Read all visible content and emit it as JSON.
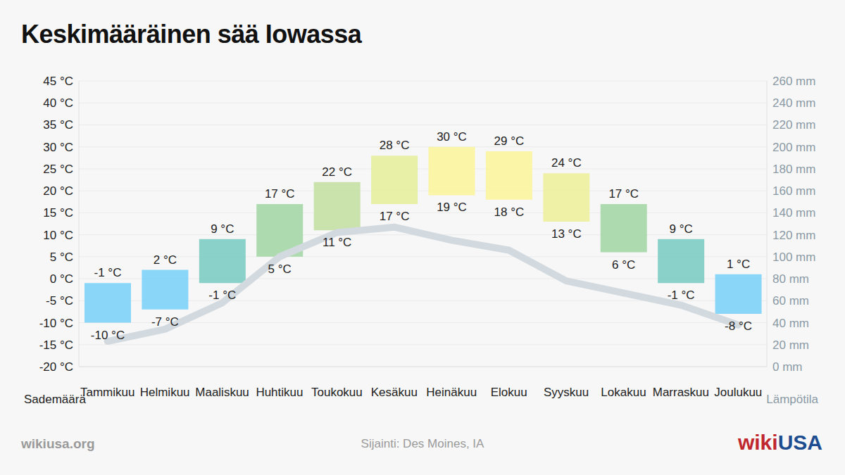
{
  "chart_data": {
    "type": "bar",
    "title": "Keskimääräinen sää Iowassa",
    "categories": [
      "Tammikuu",
      "Helmikuu",
      "Maaliskuu",
      "Huhtikuu",
      "Toukokuu",
      "Kesäkuu",
      "Heinäkuu",
      "Elokuu",
      "Syyskuu",
      "Lokakuu",
      "Marraskuu",
      "Joulukuu"
    ],
    "series": [
      {
        "name": "Lämpötila",
        "type": "bar",
        "low": [
          -10,
          -7,
          -1,
          5,
          11,
          17,
          19,
          18,
          13,
          6,
          -1,
          -8
        ],
        "high": [
          -1,
          2,
          9,
          17,
          22,
          28,
          30,
          29,
          24,
          17,
          9,
          1
        ],
        "low_labels": [
          "-10 °C",
          "-7 °C",
          "-1 °C",
          "5 °C",
          "11 °C",
          "17 °C",
          "19 °C",
          "18 °C",
          "13 °C",
          "6 °C",
          "-1 °C",
          "-8 °C"
        ],
        "high_labels": [
          "-1 °C",
          "2 °C",
          "9 °C",
          "17 °C",
          "22 °C",
          "28 °C",
          "30 °C",
          "29 °C",
          "24 °C",
          "17 °C",
          "9 °C",
          "1 °C"
        ],
        "colors": [
          "#7fd3f7",
          "#7fd3f7",
          "#7fcdc4",
          "#a6d8a8",
          "#c6e0a4",
          "#e6eea0",
          "#fbf4a0",
          "#fbf4a0",
          "#eef0a0",
          "#a6d8a8",
          "#7fcdc4",
          "#7fd3f7"
        ],
        "data_labels": true
      },
      {
        "name": "Sademäärä",
        "type": "line",
        "axis": "y2",
        "color": "#d3dadf",
        "values": [
          23,
          34,
          58,
          100,
          122,
          127,
          115,
          106,
          78,
          67,
          56,
          38
        ]
      }
    ],
    "ylim": [
      -20,
      45
    ],
    "yticks": [
      {
        "value": -20,
        "label": "-20 °C"
      },
      {
        "value": -15,
        "label": "-15 °C"
      },
      {
        "value": -10,
        "label": "-10 °C"
      },
      {
        "value": -5,
        "label": "-5 °C"
      },
      {
        "value": 0,
        "label": "0 °C"
      },
      {
        "value": 5,
        "label": "5 °C"
      },
      {
        "value": 10,
        "label": "10 °C"
      },
      {
        "value": 15,
        "label": "15 °C"
      },
      {
        "value": 20,
        "label": "20 °C"
      },
      {
        "value": 25,
        "label": "25 °C"
      },
      {
        "value": 30,
        "label": "30 °C"
      },
      {
        "value": 35,
        "label": "35 °C"
      },
      {
        "value": 40,
        "label": "40 °C"
      },
      {
        "value": 45,
        "label": "45 °C"
      }
    ],
    "y2lim": [
      0,
      260
    ],
    "y2ticks": [
      {
        "value": 0,
        "label": "0 mm"
      },
      {
        "value": 20,
        "label": "20 mm"
      },
      {
        "value": 40,
        "label": "40 mm"
      },
      {
        "value": 60,
        "label": "60 mm"
      },
      {
        "value": 80,
        "label": "80 mm"
      },
      {
        "value": 100,
        "label": "100 mm"
      },
      {
        "value": 120,
        "label": "120 mm"
      },
      {
        "value": 140,
        "label": "140 mm"
      },
      {
        "value": 160,
        "label": "160 mm"
      },
      {
        "value": 180,
        "label": "180 mm"
      },
      {
        "value": 200,
        "label": "200 mm"
      },
      {
        "value": 220,
        "label": "220 mm"
      },
      {
        "value": 240,
        "label": "240 mm"
      },
      {
        "value": 260,
        "label": "260 mm"
      }
    ],
    "grid": true,
    "annotations": [
      "wikiusa.org",
      "Sijainti: Des Moines, IA",
      "wikiUSA"
    ]
  }
}
